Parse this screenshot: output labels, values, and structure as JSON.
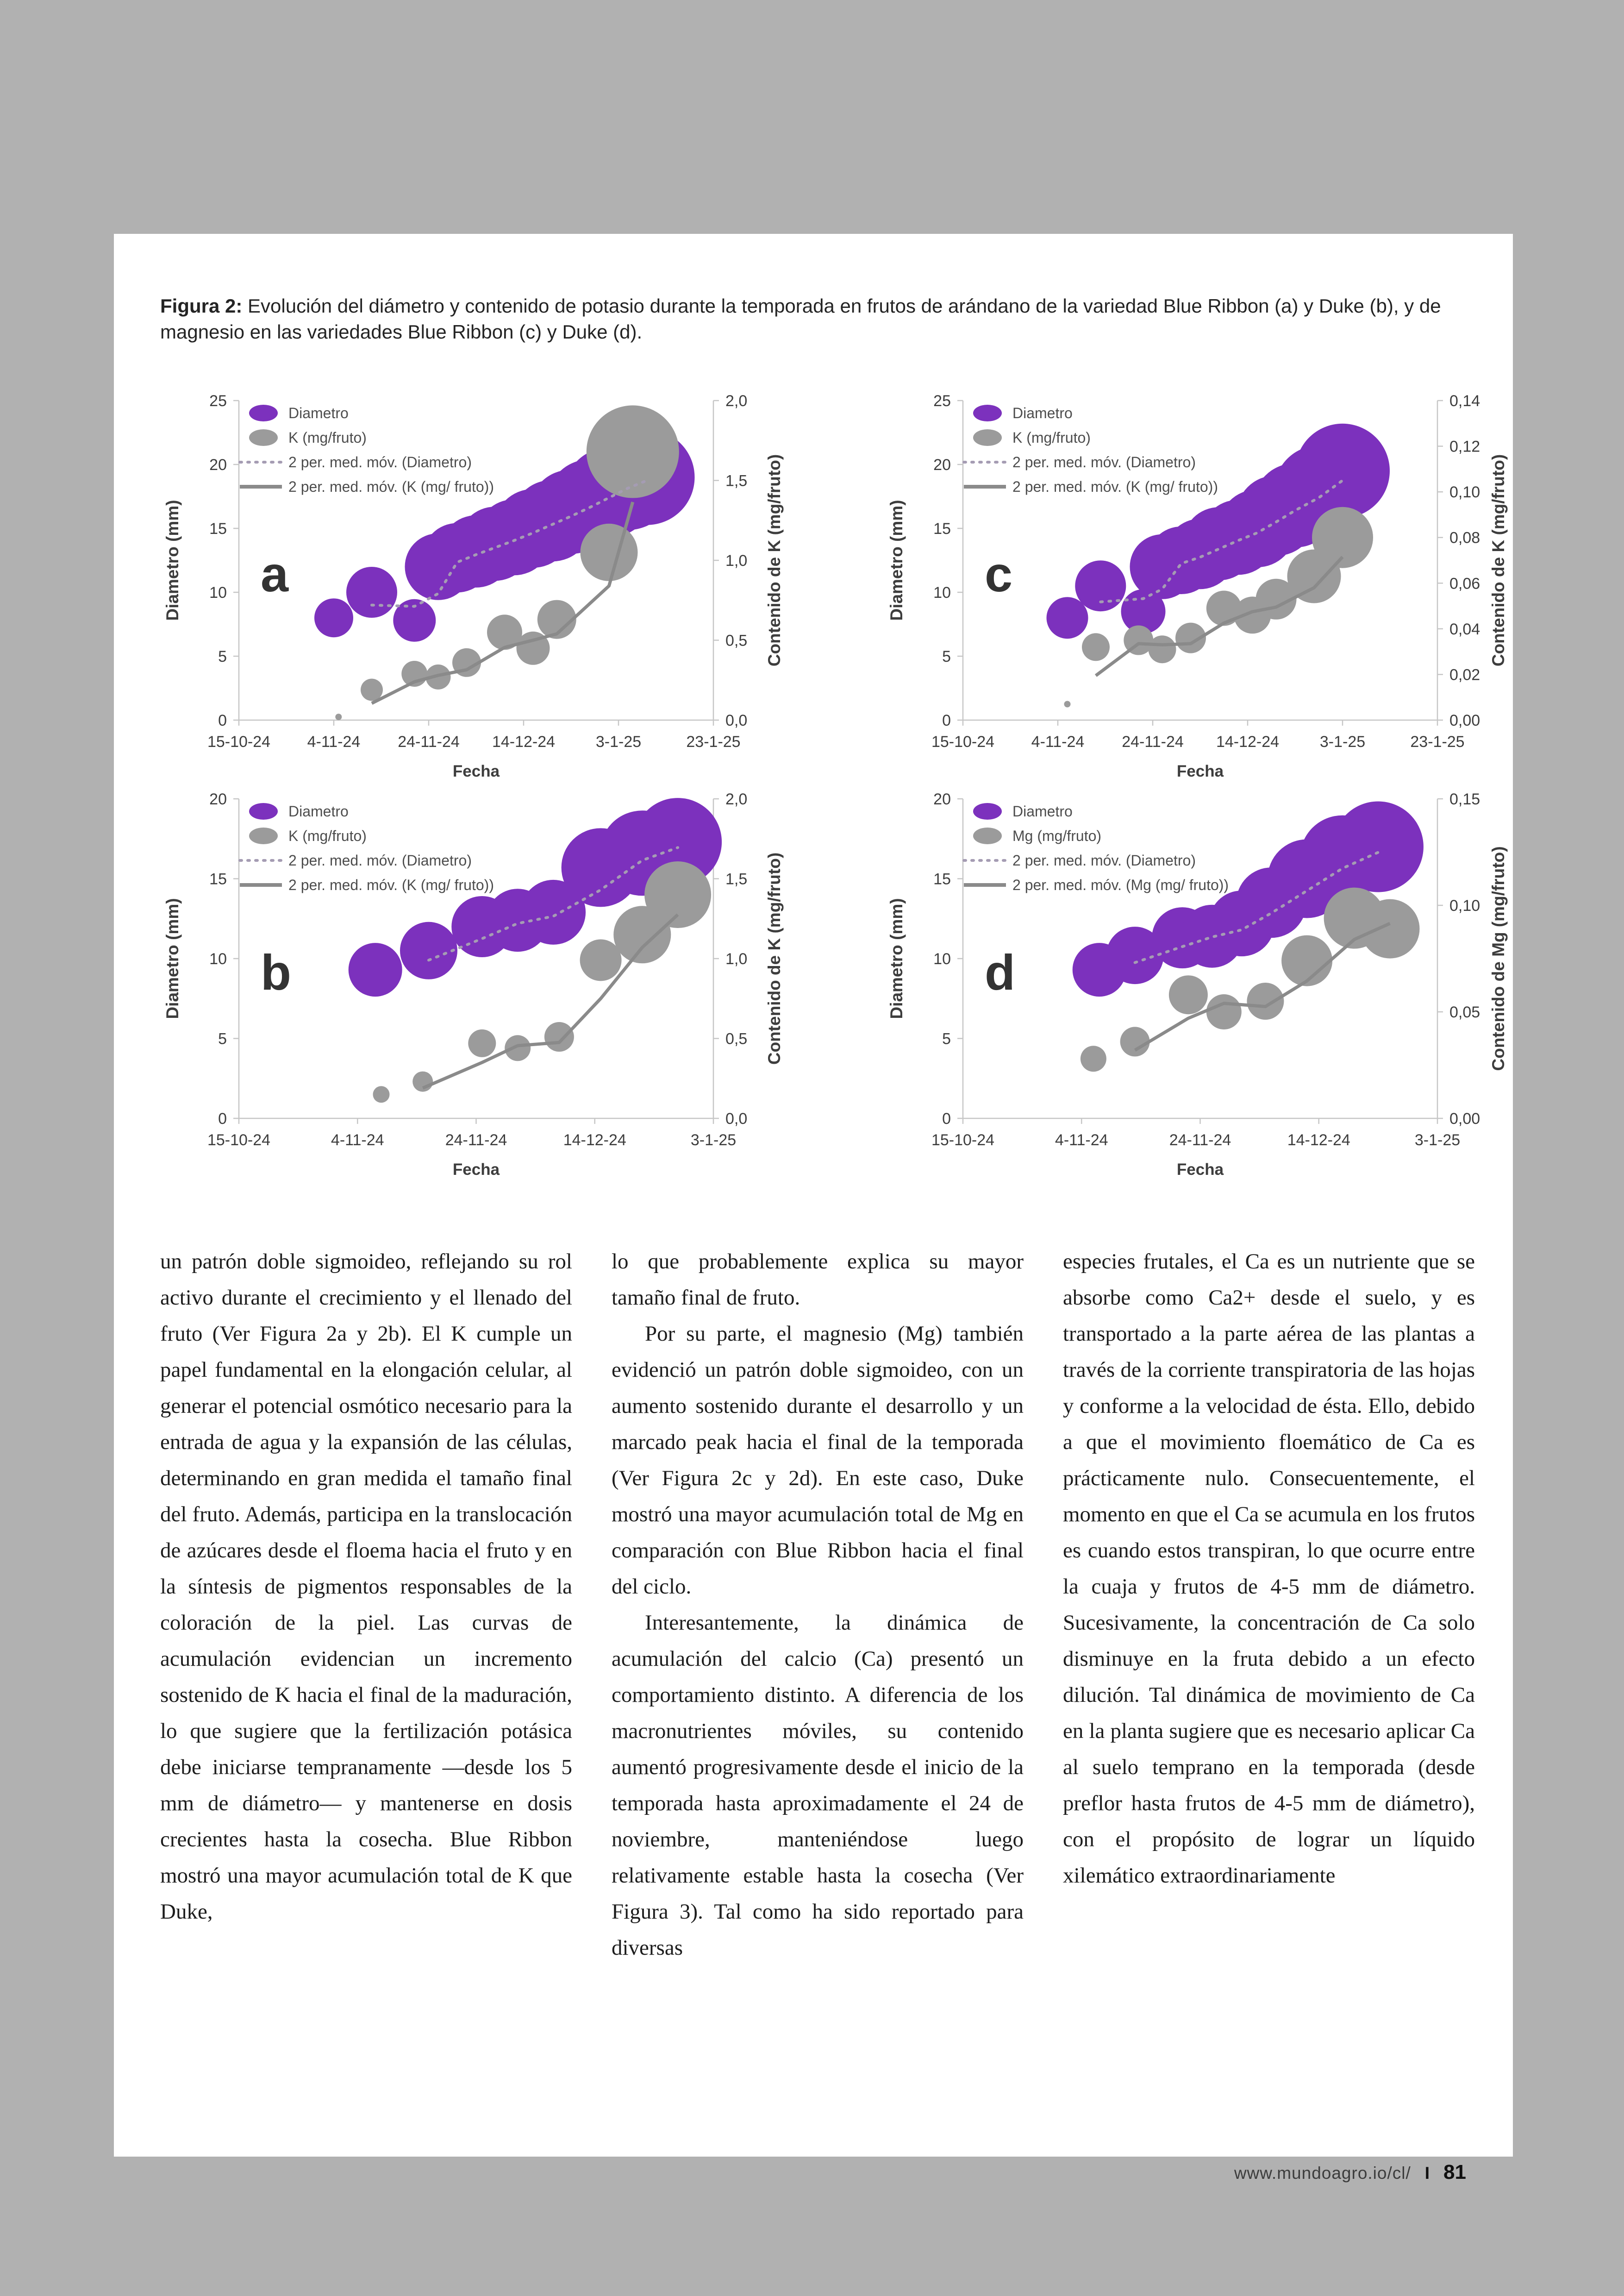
{
  "page": {
    "background_color": "#b1b1b1",
    "paper_color": "#ffffff"
  },
  "figure": {
    "caption_label": "Figura 2:",
    "caption_text": " Evolución del diámetro y contenido de potasio durante la temporada en frutos de arándano de la variedad Blue Ribbon (a) y Duke (b), y de magnesio en las variedades Blue Ribbon (c) y Duke (d)."
  },
  "colors": {
    "diametro_purple": "#7c31bd",
    "nutrient_gray": "#9b9b9b",
    "ma_diametro_line": "#a59cb3",
    "ma_nutrient_line": "#8a8a8a",
    "axis_line": "#c6c6c6",
    "axis_text": "#3d3d3d"
  },
  "chart_data": [
    {
      "id": "a",
      "type": "scatter",
      "panel_label": "a",
      "x_axis": {
        "label": "Fecha",
        "domain_days": 100,
        "ticks": [
          "15-10-24",
          "4-11-24",
          "24-11-24",
          "14-12-24",
          "3-1-25",
          "23-1-25"
        ]
      },
      "left_axis": {
        "label": "Diametro (mm)",
        "ticks": [
          0,
          5,
          10,
          15,
          20,
          25
        ],
        "max": 25
      },
      "right_axis": {
        "label": "Contenido de K (mg/fruto)",
        "ticks": [
          "0,0",
          "0,5",
          "1,0",
          "1,5",
          "2,0"
        ],
        "max": 2.0
      },
      "legend": [
        "Diametro",
        "K (mg/fruto)",
        "2 per. med. móv. (Diametro)",
        "2 per. med. móv. (K (mg/ fruto))"
      ],
      "series": [
        {
          "name": "Diametro",
          "axis": "left",
          "color": "#7c31bd",
          "ma_style": "dotted",
          "ma_color": "#a59cb3",
          "points": [
            [
              20,
              8,
              42
            ],
            [
              28,
              10,
              55
            ],
            [
              37,
              7.8,
              46
            ],
            [
              42,
              12,
              72
            ],
            [
              46,
              12.7,
              75
            ],
            [
              50,
              13.2,
              78
            ],
            [
              54,
              13.8,
              80
            ],
            [
              58,
              14.3,
              82
            ],
            [
              62,
              15,
              85
            ],
            [
              66,
              15.6,
              88
            ],
            [
              70,
              16.3,
              91
            ],
            [
              74,
              17,
              94
            ],
            [
              78,
              17.8,
              97
            ],
            [
              82,
              18.5,
              100
            ],
            [
              86,
              19,
              103
            ]
          ]
        },
        {
          "name": "K (mg/fruto)",
          "axis": "right",
          "color": "#9b9b9b",
          "ma_style": "solid",
          "ma_color": "#8a8a8a",
          "points": [
            [
              21,
              0.02,
              7
            ],
            [
              28,
              0.19,
              24
            ],
            [
              37,
              0.29,
              28
            ],
            [
              42,
              0.27,
              27
            ],
            [
              48,
              0.36,
              31
            ],
            [
              56,
              0.55,
              38
            ],
            [
              62,
              0.45,
              36
            ],
            [
              67,
              0.63,
              42
            ],
            [
              78,
              1.05,
              62
            ],
            [
              83,
              1.68,
              100
            ]
          ]
        }
      ]
    },
    {
      "id": "c",
      "type": "scatter",
      "panel_label": "c",
      "x_axis": {
        "label": "Fecha",
        "domain_days": 100,
        "ticks": [
          "15-10-24",
          "4-11-24",
          "24-11-24",
          "14-12-24",
          "3-1-25",
          "23-1-25"
        ]
      },
      "left_axis": {
        "label": "Diametro (mm)",
        "ticks": [
          0,
          5,
          10,
          15,
          20,
          25
        ],
        "max": 25
      },
      "right_axis": {
        "label": "Contenido de K (mg/fruto)",
        "ticks": [
          "0,00",
          "0,02",
          "0,04",
          "0,06",
          "0,08",
          "0,10",
          "0,12",
          "0,14"
        ],
        "max": 0.14
      },
      "legend": [
        "Diametro",
        "K (mg/fruto)",
        "2 per. med. móv. (Diametro)",
        "2 per. med. móv. (K (mg/ fruto))"
      ],
      "series": [
        {
          "name": "Diametro",
          "axis": "left",
          "color": "#7c31bd",
          "ma_style": "dotted",
          "ma_color": "#a59cb3",
          "points": [
            [
              22,
              8,
              45
            ],
            [
              29,
              10.5,
              55
            ],
            [
              38,
              8.5,
              48
            ],
            [
              42,
              12,
              70
            ],
            [
              46,
              12.5,
              73
            ],
            [
              50,
              13,
              76
            ],
            [
              54,
              13.8,
              79
            ],
            [
              58,
              14.3,
              81
            ],
            [
              62,
              15,
              84
            ],
            [
              66,
              16,
              87
            ],
            [
              70,
              16.8,
              91
            ],
            [
              75,
              18,
              96
            ],
            [
              80,
              19.5,
              102
            ]
          ]
        },
        {
          "name": "K (mg/fruto)",
          "axis": "right",
          "color": "#9b9b9b",
          "ma_style": "solid",
          "ma_color": "#8a8a8a",
          "points": [
            [
              22,
              0.007,
              7
            ],
            [
              28,
              0.032,
              30
            ],
            [
              37,
              0.035,
              32
            ],
            [
              42,
              0.031,
              30
            ],
            [
              48,
              0.036,
              33
            ],
            [
              55,
              0.049,
              38
            ],
            [
              61,
              0.046,
              40
            ],
            [
              66,
              0.053,
              44
            ],
            [
              74,
              0.063,
              58
            ],
            [
              80,
              0.08,
              66
            ]
          ]
        }
      ]
    },
    {
      "id": "b",
      "type": "scatter",
      "panel_label": "b",
      "x_axis": {
        "label": "Fecha",
        "domain_days": 80,
        "ticks": [
          "15-10-24",
          "4-11-24",
          "24-11-24",
          "14-12-24",
          "3-1-25"
        ]
      },
      "left_axis": {
        "label": "Diametro (mm)",
        "ticks": [
          0,
          5,
          10,
          15,
          20
        ],
        "max": 20
      },
      "right_axis": {
        "label": "Contenido de K (mg/fruto)",
        "ticks": [
          "0,0",
          "0,5",
          "1,0",
          "1,5",
          "2,0"
        ],
        "max": 2.0
      },
      "legend": [
        "Diametro",
        "K (mg/fruto)",
        "2 per. med. móv. (Diametro)",
        "2 per. med. móv. (K (mg/ fruto))"
      ],
      "series": [
        {
          "name": "Diametro",
          "axis": "left",
          "color": "#7c31bd",
          "ma_style": "dotted",
          "ma_color": "#a59cb3",
          "points": [
            [
              23,
              9.3,
              58
            ],
            [
              32,
              10.5,
              62
            ],
            [
              41,
              12,
              66
            ],
            [
              47,
              12.4,
              68
            ],
            [
              53,
              12.9,
              70
            ],
            [
              61,
              15.7,
              85
            ],
            [
              68,
              16.6,
              92
            ],
            [
              74,
              17.3,
              95
            ]
          ]
        },
        {
          "name": "K (mg/fruto)",
          "axis": "right",
          "color": "#9b9b9b",
          "ma_style": "solid",
          "ma_color": "#8a8a8a",
          "points": [
            [
              24,
              0.15,
              18
            ],
            [
              31,
              0.23,
              22
            ],
            [
              41,
              0.47,
              30
            ],
            [
              47,
              0.44,
              28
            ],
            [
              54,
              0.51,
              32
            ],
            [
              61,
              0.99,
              45
            ],
            [
              68,
              1.15,
              62
            ],
            [
              74,
              1.4,
              72
            ]
          ]
        }
      ]
    },
    {
      "id": "d",
      "type": "scatter",
      "panel_label": "d",
      "x_axis": {
        "label": "Fecha",
        "domain_days": 80,
        "ticks": [
          "15-10-24",
          "4-11-24",
          "24-11-24",
          "14-12-24",
          "3-1-25"
        ]
      },
      "left_axis": {
        "label": "Diametro (mm)",
        "ticks": [
          0,
          5,
          10,
          15,
          20
        ],
        "max": 20
      },
      "right_axis": {
        "label": "Contenido de Mg (mg/fruto)",
        "ticks": [
          "0,00",
          "0,05",
          "0,10",
          "0,15"
        ],
        "max": 0.15
      },
      "legend": [
        "Diametro",
        "Mg (mg/fruto)",
        "2 per. med. móv. (Diametro)",
        "2 per. med. móv. (Mg (mg/ fruto))"
      ],
      "series": [
        {
          "name": "Diametro",
          "axis": "left",
          "color": "#7c31bd",
          "ma_style": "dotted",
          "ma_color": "#a59cb3",
          "points": [
            [
              23,
              9.3,
              58
            ],
            [
              29,
              10.2,
              62
            ],
            [
              37,
              11.3,
              66
            ],
            [
              42,
              11.4,
              68
            ],
            [
              47,
              12.2,
              71
            ],
            [
              52,
              13.5,
              76
            ],
            [
              58,
              15,
              85
            ],
            [
              64,
              16.3,
              92
            ],
            [
              70,
              17,
              98
            ]
          ]
        },
        {
          "name": "Mg (mg/fruto)",
          "axis": "right",
          "color": "#9b9b9b",
          "ma_style": "solid",
          "ma_color": "#8a8a8a",
          "points": [
            [
              22,
              0.028,
              28
            ],
            [
              29,
              0.036,
              32
            ],
            [
              38,
              0.058,
              42
            ],
            [
              44,
              0.05,
              38
            ],
            [
              51,
              0.055,
              40
            ],
            [
              58,
              0.074,
              55
            ],
            [
              66,
              0.094,
              66
            ],
            [
              72,
              0.089,
              64
            ]
          ]
        }
      ]
    }
  ],
  "body": {
    "columns": [
      {
        "paragraphs": [
          {
            "indent": false,
            "text": "un patrón doble sigmoideo, reflejando su rol activo durante el crecimiento y el llenado del fruto (Ver Figura 2a y 2b). El K cumple un papel fundamental en la elongación celular, al generar el potencial osmótico necesario para la entrada de agua y la expansión de las células, determinando en gran medida el tamaño final del fruto. Además, participa en la translocación de azúcares desde el floema hacia el fruto y en la síntesis de pigmentos responsables de la coloración de la piel. Las curvas de acumulación evidencian un incremento sostenido de K hacia el final de la maduración, lo que sugiere que la fertilización potásica debe iniciarse tempranamente —desde los 5 mm de diámetro— y mantenerse en dosis crecientes hasta la cosecha. Blue Ribbon mostró una mayor acumulación total de K que Duke,"
          }
        ]
      },
      {
        "paragraphs": [
          {
            "indent": false,
            "text": "lo que probablemente explica su mayor tamaño final de fruto."
          },
          {
            "indent": true,
            "text": "Por su parte, el magnesio (Mg) también evidenció un patrón doble sigmoideo, con un aumento sostenido durante el desarrollo y un marcado peak hacia el final de la temporada (Ver Figura 2c y 2d). En este caso, Duke mostró una mayor acumulación total de Mg en comparación con Blue Ribbon hacia el final del ciclo."
          },
          {
            "indent": true,
            "text": "Interesantemente, la dinámica de acumulación del calcio (Ca) presentó un comportamiento distinto. A diferencia de los macronutrientes móviles, su contenido aumentó progresivamente desde el inicio de la temporada hasta aproximadamente el 24 de noviembre, manteniéndose luego relativamente estable hasta la cosecha (Ver Figura 3). Tal como ha sido reportado para diversas"
          }
        ]
      },
      {
        "paragraphs": [
          {
            "indent": false,
            "text": "especies frutales, el Ca es un nutriente que se absorbe como Ca2+ desde el suelo, y es transportado a la parte aérea de las plantas a través de la corriente transpiratoria de las hojas y conforme a la velocidad de ésta. Ello, debido a que el movimiento floemático de Ca es prácticamente nulo. Consecuentemente, el momento en que el Ca se acumula en los frutos es cuando estos transpiran, lo que ocurre entre la cuaja y frutos de 4-5 mm de diámetro. Sucesivamente, la concentración de Ca solo disminuye en la fruta debido a un efecto dilución. Tal dinámica de movimiento de Ca en la planta sugiere que es necesario aplicar Ca al suelo temprano en la temporada (desde preflor hasta frutos de 4-5 mm de diámetro), con el propósito de lograr un líquido xilemático extraordinariamente"
          }
        ]
      }
    ]
  },
  "footer": {
    "url": "www.mundoagro.io/cl/",
    "divider": "I",
    "page_number": "81"
  }
}
